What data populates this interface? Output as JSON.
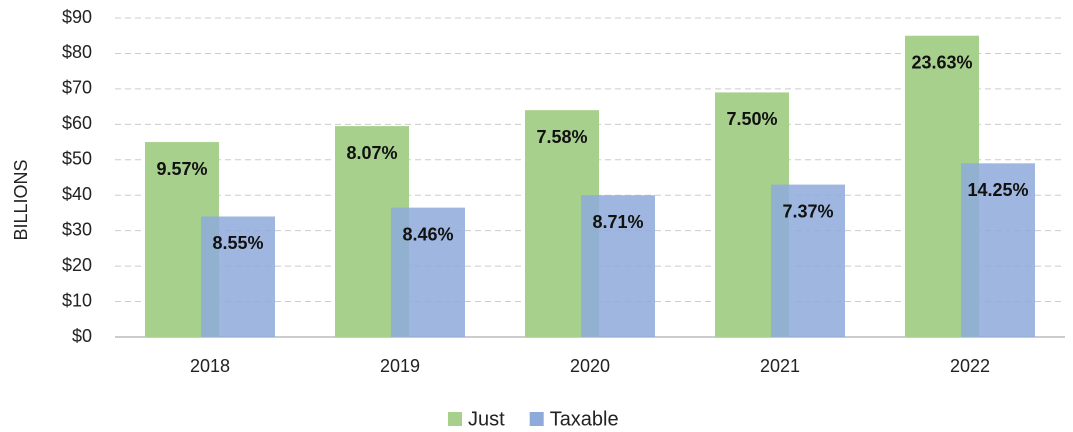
{
  "chart_data": {
    "type": "bar",
    "y_axis_label": "BILLIONS",
    "categories": [
      "2018",
      "2019",
      "2020",
      "2021",
      "2022"
    ],
    "series": [
      {
        "name": "Just",
        "color": "#a8d08d",
        "values": [
          55,
          59.5,
          64,
          69,
          85
        ],
        "labels": [
          "9.57%",
          "8.07%",
          "7.58%",
          "7.50%",
          "23.63%"
        ]
      },
      {
        "name": "Taxable",
        "color": "#8eaadb",
        "values": [
          34,
          36.5,
          40,
          43,
          49
        ],
        "labels": [
          "8.55%",
          "8.46%",
          "8.71%",
          "7.37%",
          "14.25%"
        ]
      }
    ],
    "ylim": [
      0,
      90
    ],
    "yticks": [
      {
        "value": 0,
        "label": "$0"
      },
      {
        "value": 10,
        "label": "$10"
      },
      {
        "value": 20,
        "label": "$20"
      },
      {
        "value": 30,
        "label": "$30"
      },
      {
        "value": 40,
        "label": "$40"
      },
      {
        "value": 50,
        "label": "$50"
      },
      {
        "value": 60,
        "label": "$60"
      },
      {
        "value": 70,
        "label": "$70"
      },
      {
        "value": 80,
        "label": "$80"
      },
      {
        "value": 90,
        "label": "$90"
      }
    ],
    "grid": true,
    "legend": "bottom"
  }
}
